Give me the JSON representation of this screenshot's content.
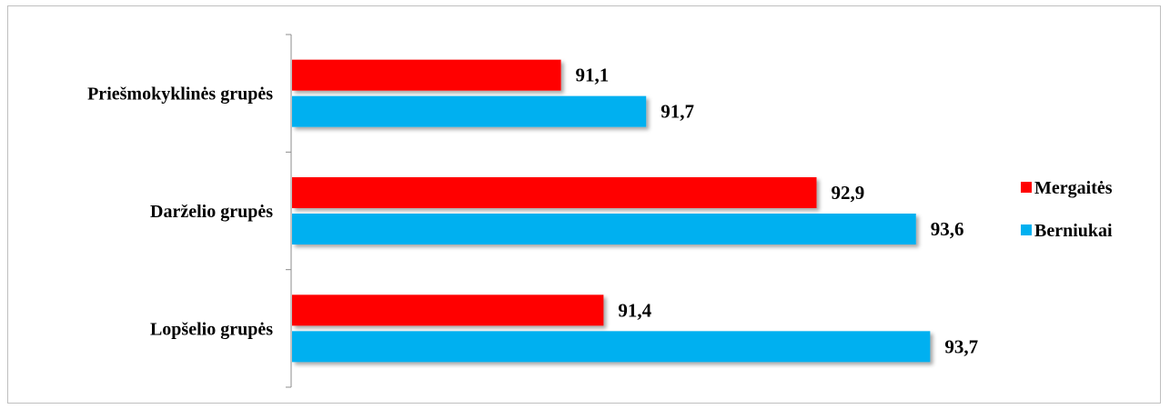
{
  "chart_data": {
    "type": "bar",
    "orientation": "horizontal",
    "categories": [
      "Priešmokyklinės grupės",
      "Darželio grupės",
      "Lopšelio grupės"
    ],
    "series": [
      {
        "name": "Mergaitės",
        "color": "#ff0000",
        "values": [
          91.1,
          92.9,
          91.4
        ],
        "labels": [
          "91,1",
          "92,9",
          "91,4"
        ]
      },
      {
        "name": "Berniukai",
        "color": "#00b0f0",
        "values": [
          91.7,
          93.6,
          93.7
        ],
        "labels": [
          "91,7",
          "93,6",
          "93,7"
        ]
      }
    ],
    "xlim": [
      89.2,
      94.05
    ],
    "grid": false,
    "legend_position": "right"
  }
}
